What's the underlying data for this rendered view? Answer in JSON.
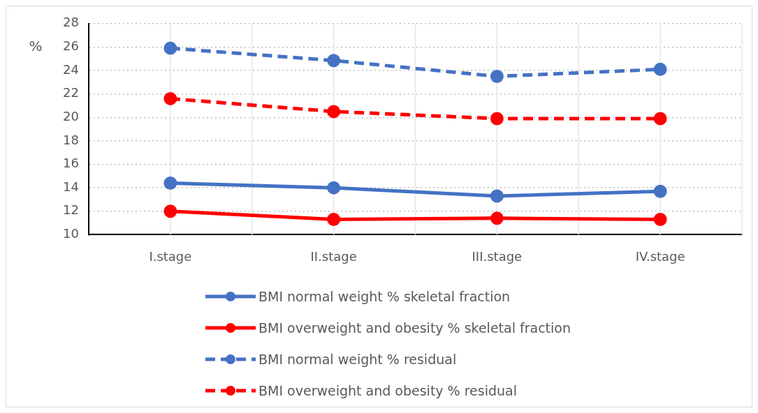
{
  "chart_data": {
    "type": "line",
    "ylabel": "%",
    "categories": [
      "I.stage",
      "II.stage",
      "III.stage",
      "IV.stage"
    ],
    "series": [
      {
        "name": "BMI normal weight % skeletal fraction",
        "color": "#4472c4",
        "values": [
          14.4,
          14.0,
          13.3,
          13.7
        ],
        "line_style": "solid"
      },
      {
        "name": "BMI overweight and obesity % skeletal fraction",
        "color": "#ff0000",
        "values": [
          12.0,
          11.3,
          11.4,
          11.3
        ],
        "line_style": "solid"
      },
      {
        "name": "BMI normal weight % residual",
        "color": "#4472c4",
        "values": [
          25.9,
          24.85,
          23.5,
          24.1
        ],
        "line_style": "dashed"
      },
      {
        "name": "BMI overweight and obesity % residual",
        "color": "#ff0000",
        "values": [
          21.6,
          20.5,
          19.9,
          19.9
        ],
        "line_style": "dashed"
      }
    ],
    "ylim": [
      10,
      28
    ],
    "yticks": [
      10,
      12,
      14,
      16,
      18,
      20,
      22,
      24,
      26,
      28
    ],
    "grid": true,
    "legend": "bottom",
    "marker": "circle"
  }
}
